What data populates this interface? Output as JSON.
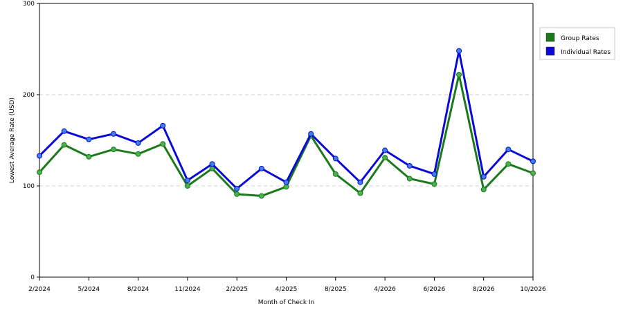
{
  "chart_data": {
    "type": "line",
    "xlabel": "Month of Check In",
    "ylabel": "Lowest Average Rate (USD)",
    "ylim": [
      0,
      300
    ],
    "yticks": [
      0,
      100,
      200,
      300
    ],
    "grid": true,
    "legend_position": "right",
    "x_tick_labels": [
      "2/2024",
      "5/2024",
      "8/2024",
      "11/2024",
      "2/2025",
      "4/2025",
      "8/2025",
      "4/2026",
      "6/2026",
      "8/2026",
      "10/2026"
    ],
    "x_tick_indices": [
      0,
      2,
      4,
      6,
      8,
      10,
      12,
      14,
      16,
      18,
      20
    ],
    "point_count": 21,
    "series": [
      {
        "name": "Group Rates",
        "color": "#1a7a1a",
        "marker_color": "#4caf50",
        "values": [
          115,
          145,
          132,
          140,
          135,
          146,
          100,
          119,
          91,
          89,
          99,
          155,
          113,
          92,
          131,
          108,
          102,
          222,
          96,
          124,
          114
        ]
      },
      {
        "name": "Individual Rates",
        "color": "#0a0ad6",
        "marker_color": "#3f7fe8",
        "values": [
          133,
          160,
          151,
          157,
          147,
          166,
          106,
          124,
          97,
          119,
          104,
          157,
          130,
          104,
          139,
          122,
          113,
          248,
          110,
          140,
          127
        ]
      }
    ]
  }
}
